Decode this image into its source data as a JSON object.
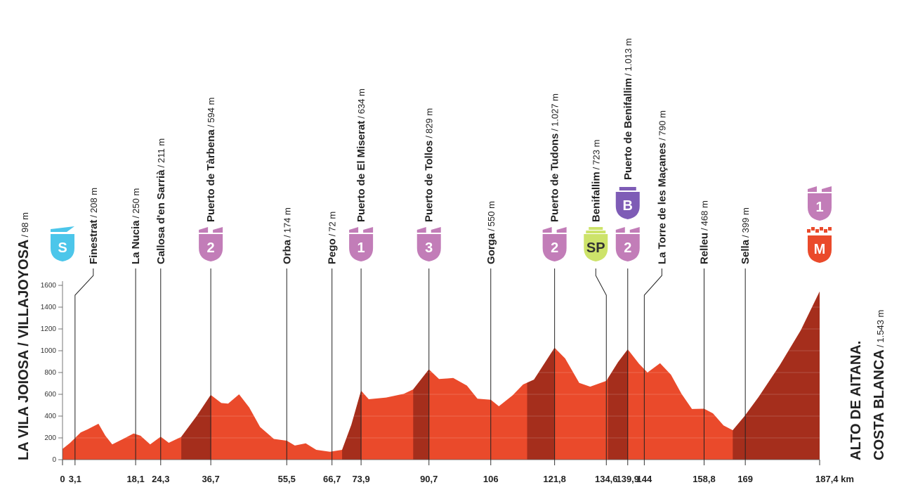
{
  "chart_data": {
    "type": "area",
    "start": {
      "name": "LA VILA JOIOSA / VILLAJOYOSA",
      "altitude": "98 m",
      "badges": [
        {
          "text": "S",
          "color": "#4cc6ea"
        }
      ]
    },
    "finish": {
      "name_lines": [
        "ALTO DE AITANA.",
        "COSTA BLANCA"
      ],
      "altitude": "1.543 m",
      "badges": [
        {
          "text": "M",
          "color": "#ea4a2b"
        },
        {
          "text": "1",
          "color": "#c27db8"
        }
      ]
    },
    "color": "#ea4a2b",
    "climb_color": "#a52e1c",
    "x": [
      0,
      1.9,
      4.5,
      6.3,
      8.9,
      10.6,
      12.3,
      15,
      17.6,
      19.3,
      21.7,
      24.3,
      26.3,
      29.4,
      33.2,
      36.7,
      39.3,
      41,
      43.7,
      46.2,
      48.9,
      52.3,
      55.5,
      57.5,
      60.2,
      62.8,
      66.2,
      69.2,
      71.5,
      73.9,
      75.8,
      80.1,
      84.5,
      86.8,
      90.7,
      93.2,
      96.7,
      100.1,
      102.7,
      106,
      108,
      111.4,
      114,
      116.7,
      121.8,
      124.4,
      127.9,
      130.6,
      134.6,
      137.5,
      139.9,
      142.7,
      144.8,
      147.9,
      150.6,
      153.2,
      155.8,
      158.8,
      161,
      163.6,
      165.9,
      168.8,
      172.3,
      177.5,
      182.7,
      187.4
    ],
    "values": [
      98,
      155,
      250,
      280,
      330,
      220,
      140,
      190,
      240,
      220,
      140,
      211,
      155,
      210,
      400,
      594,
      520,
      515,
      600,
      480,
      300,
      190,
      174,
      130,
      150,
      90,
      72,
      90,
      320,
      634,
      555,
      570,
      605,
      645,
      829,
      740,
      750,
      680,
      560,
      550,
      490,
      590,
      690,
      735,
      1027,
      930,
      705,
      670,
      723,
      895,
      1013,
      880,
      800,
      885,
      780,
      605,
      465,
      468,
      425,
      315,
      270,
      399,
      575,
      865,
      1185,
      1543
    ],
    "climbs": [
      [
        29.4,
        36.7
      ],
      [
        69.2,
        73.9
      ],
      [
        86.8,
        90.7
      ],
      [
        115,
        121.8
      ],
      [
        135,
        139.9
      ],
      [
        165.9,
        187.4
      ]
    ],
    "xlim": [
      0,
      187.4
    ],
    "ylim": [
      0,
      1600
    ],
    "yticks": [
      0,
      200,
      400,
      600,
      800,
      1000,
      1200,
      1400,
      1600
    ],
    "xticks": [
      0,
      {
        "value": 3.1,
        "label": "3,1"
      },
      {
        "value": 18.1,
        "label": "18,1"
      },
      {
        "value": 24.3,
        "label": "24,3"
      },
      {
        "value": 36.7,
        "label": "36,7"
      },
      {
        "value": 55.5,
        "label": "55,5"
      },
      {
        "value": 66.7,
        "label": "66,7"
      },
      {
        "value": 73.9,
        "label": "73,9"
      },
      {
        "value": 90.7,
        "label": "90,7"
      },
      106,
      {
        "value": 121.8,
        "label": "121,8"
      },
      {
        "value": 134.6,
        "label": "134,6"
      },
      {
        "value": 139.9,
        "label": "139,9"
      },
      144,
      {
        "value": 158.8,
        "label": "158,8"
      },
      169,
      {
        "value": 187.4,
        "label": "187,4 km"
      }
    ],
    "grid": true,
    "annotations": [
      {
        "name": "Finestrat",
        "altitude": "208 m",
        "km": 3.1,
        "badges": []
      },
      {
        "name": "La Nucia",
        "altitude": "250 m",
        "km": 18.1,
        "badges": []
      },
      {
        "name": "Callosa d'en Sarrià",
        "altitude": "211 m",
        "km": 24.3,
        "badges": []
      },
      {
        "name": "Puerto de Tàrbena",
        "altitude": "594 m",
        "km": 36.7,
        "badges": [
          {
            "text": "2",
            "color": "#c27db8"
          }
        ]
      },
      {
        "name": "Orba",
        "altitude": "174 m",
        "km": 55.5,
        "badges": []
      },
      {
        "name": "Pego",
        "altitude": "72 m",
        "km": 66.7,
        "badges": []
      },
      {
        "name": "Puerto de El Miserat",
        "altitude": "634 m",
        "km": 73.9,
        "badges": [
          {
            "text": "1",
            "color": "#c27db8"
          }
        ]
      },
      {
        "name": "Puerto de Tollos",
        "altitude": "829 m",
        "km": 90.7,
        "badges": [
          {
            "text": "3",
            "color": "#c27db8"
          }
        ]
      },
      {
        "name": "Gorga",
        "altitude": "550 m",
        "km": 106,
        "badges": []
      },
      {
        "name": "Puerto de Tudons",
        "altitude": "1.027 m",
        "km": 121.8,
        "badges": [
          {
            "text": "2",
            "color": "#c27db8"
          }
        ]
      },
      {
        "name": "Benifallim",
        "altitude": "723 m",
        "km": 134.6,
        "badges": [
          {
            "text": "SP",
            "color": "#cde36a"
          }
        ]
      },
      {
        "name": "Puerto de Benifallim",
        "altitude": "1.013 m",
        "km": 139.9,
        "badges": [
          {
            "text": "2",
            "color": "#c27db8"
          },
          {
            "text": "B",
            "color": "#7e5cb6"
          }
        ]
      },
      {
        "name": "La Torre de les Maçanes",
        "altitude": "790 m",
        "km": 144,
        "badges": []
      },
      {
        "name": "Relleu",
        "altitude": "468 m",
        "km": 158.8,
        "badges": []
      },
      {
        "name": "Sella",
        "altitude": "399 m",
        "km": 169,
        "badges": []
      }
    ]
  }
}
